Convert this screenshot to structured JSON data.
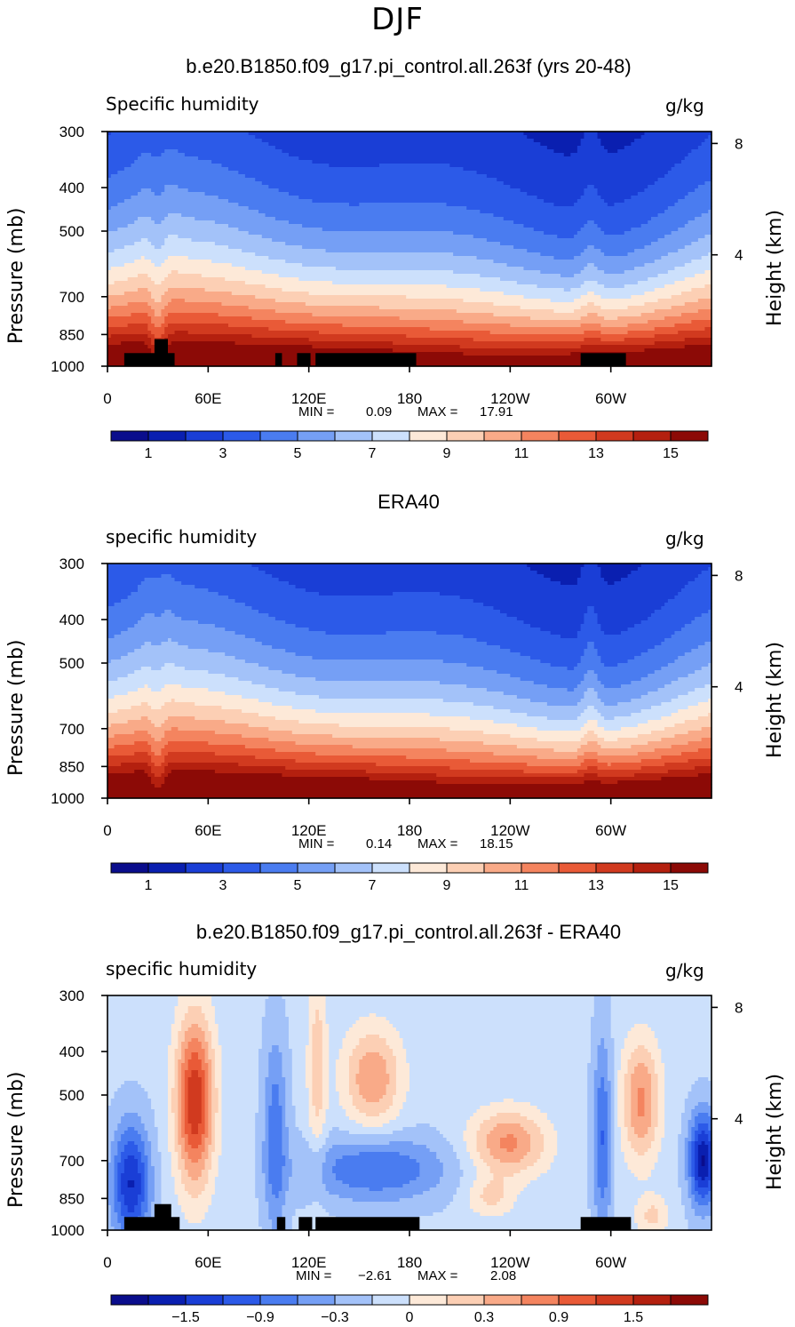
{
  "figure": {
    "title": "DJF"
  },
  "colors": {
    "ramp": [
      "#0a0d8c",
      "#0a1fb0",
      "#1a3ed6",
      "#2c5ae8",
      "#4a7cf0",
      "#759ff5",
      "#a3c2f9",
      "#cce0fc",
      "#fde9d8",
      "#fccfb4",
      "#f9aa88",
      "#f4845f",
      "#e95a37",
      "#d13a1f",
      "#b4200f",
      "#8c0a06"
    ]
  },
  "chart_data": [
    {
      "type": "heatmap",
      "title": "b.e20.B1850.f09_g17.pi_control.all.263f (yrs 20-48)",
      "left_label": "Specific humidity",
      "right_label": "g/kg",
      "xlabel": "",
      "ylabel": "Pressure (mb)",
      "ylabel_right": "Height (km)",
      "x_ticks": [
        "0",
        "60E",
        "120E",
        "180",
        "120W",
        "60W"
      ],
      "x_tick_values": [
        0,
        60,
        120,
        180,
        240,
        300
      ],
      "xlim": [
        0,
        360
      ],
      "y_ticks": [
        "300",
        "400",
        "500",
        "700",
        "850",
        "1000"
      ],
      "y_tick_values": [
        300,
        400,
        500,
        700,
        850,
        1000
      ],
      "ylim": [
        1000,
        300
      ],
      "y_right_ticks": [
        "8",
        "4"
      ],
      "y_right_tick_values": [
        8,
        4
      ],
      "min_label": "MIN =",
      "min_value": "0.09",
      "max_label": "MAX =",
      "max_value": "17.91",
      "min": 0.09,
      "max": 17.91,
      "colorbar_labels": [
        "1",
        "3",
        "5",
        "7",
        "9",
        "11",
        "13",
        "15"
      ],
      "mode": "full",
      "topography": true
    },
    {
      "type": "heatmap",
      "title": "ERA40",
      "left_label": "specific humidity",
      "right_label": "g/kg",
      "xlabel": "",
      "ylabel": "Pressure (mb)",
      "ylabel_right": "Height (km)",
      "x_ticks": [
        "0",
        "60E",
        "120E",
        "180",
        "120W",
        "60W"
      ],
      "x_tick_values": [
        0,
        60,
        120,
        180,
        240,
        300
      ],
      "xlim": [
        0,
        360
      ],
      "y_ticks": [
        "300",
        "400",
        "500",
        "700",
        "850",
        "1000"
      ],
      "y_tick_values": [
        300,
        400,
        500,
        700,
        850,
        1000
      ],
      "ylim": [
        1000,
        300
      ],
      "y_right_ticks": [
        "8",
        "4"
      ],
      "y_right_tick_values": [
        8,
        4
      ],
      "min_label": "MIN =",
      "min_value": "0.14",
      "max_label": "MAX =",
      "max_value": "18.15",
      "min": 0.14,
      "max": 18.15,
      "colorbar_labels": [
        "1",
        "3",
        "5",
        "7",
        "9",
        "11",
        "13",
        "15"
      ],
      "mode": "era",
      "topography": false
    },
    {
      "type": "heatmap",
      "title": "b.e20.B1850.f09_g17.pi_control.all.263f - ERA40",
      "left_label": "specific humidity",
      "right_label": "g/kg",
      "xlabel": "",
      "ylabel": "Pressure (mb)",
      "ylabel_right": "Height (km)",
      "x_ticks": [
        "0",
        "60E",
        "120E",
        "180",
        "120W",
        "60W"
      ],
      "x_tick_values": [
        0,
        60,
        120,
        180,
        240,
        300
      ],
      "xlim": [
        0,
        360
      ],
      "y_ticks": [
        "300",
        "400",
        "500",
        "700",
        "850",
        "1000"
      ],
      "y_tick_values": [
        300,
        400,
        500,
        700,
        850,
        1000
      ],
      "ylim": [
        1000,
        300
      ],
      "y_right_ticks": [
        "8",
        "4"
      ],
      "y_right_tick_values": [
        8,
        4
      ],
      "min_label": "MIN =",
      "min_value": "−2.61",
      "max_label": "MAX =",
      "max_value": "2.08",
      "min": -2.61,
      "max": 2.08,
      "colorbar_labels": [
        "−1.5",
        "−0.9",
        "−0.3",
        "0",
        "0.3",
        "0.9",
        "1.5"
      ],
      "mode": "diff",
      "topography": true
    }
  ]
}
